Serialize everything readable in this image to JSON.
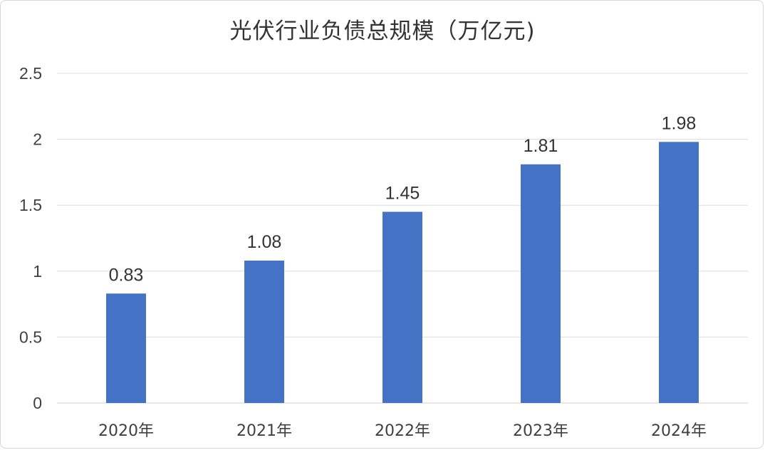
{
  "chart_data": {
    "type": "bar",
    "title": "光伏行业负债总规模（万亿元)",
    "categories": [
      "2020年",
      "2021年",
      "2022年",
      "2023年",
      "2024年"
    ],
    "values": [
      0.83,
      1.08,
      1.45,
      1.81,
      1.98
    ],
    "data_labels": [
      "0.83",
      "1.08",
      "1.45",
      "1.81",
      "1.98"
    ],
    "y_ticks": [
      "0",
      "0.5",
      "1",
      "1.5",
      "2",
      "2.5"
    ],
    "ylim": [
      0,
      2.5
    ],
    "xlabel": "",
    "ylabel": "",
    "grid": true,
    "legend": "none",
    "bar_color": "#4472C4"
  }
}
